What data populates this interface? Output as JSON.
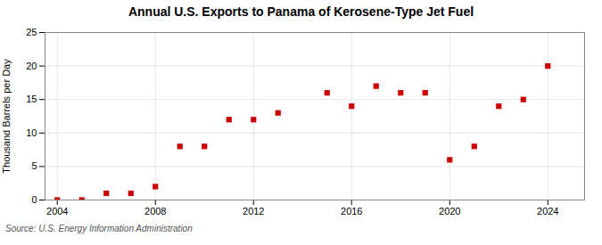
{
  "chart_data": {
    "type": "scatter",
    "title": "Annual U.S. Exports to Panama of Kerosene-Type Jet Fuel",
    "ylabel": "Thousand Barrels per Day",
    "source": "Source: U.S. Energy Information Administration",
    "x": [
      2004,
      2005,
      2006,
      2007,
      2008,
      2009,
      2010,
      2011,
      2012,
      2013,
      2015,
      2016,
      2017,
      2018,
      2019,
      2020,
      2021,
      2022,
      2023,
      2024
    ],
    "values": [
      0,
      0,
      1,
      1,
      2,
      8,
      8,
      12,
      12,
      13,
      16,
      14,
      17,
      16,
      16,
      6,
      8,
      14,
      15,
      20
    ],
    "color": "#cc0000",
    "marker": "square",
    "xlim": [
      2003.5,
      2025.5
    ],
    "ylim": [
      0,
      25
    ],
    "xticks": [
      2004,
      2008,
      2012,
      2016,
      2020,
      2024
    ],
    "yticks": [
      0,
      5,
      10,
      15,
      20,
      25
    ],
    "grid": true
  }
}
